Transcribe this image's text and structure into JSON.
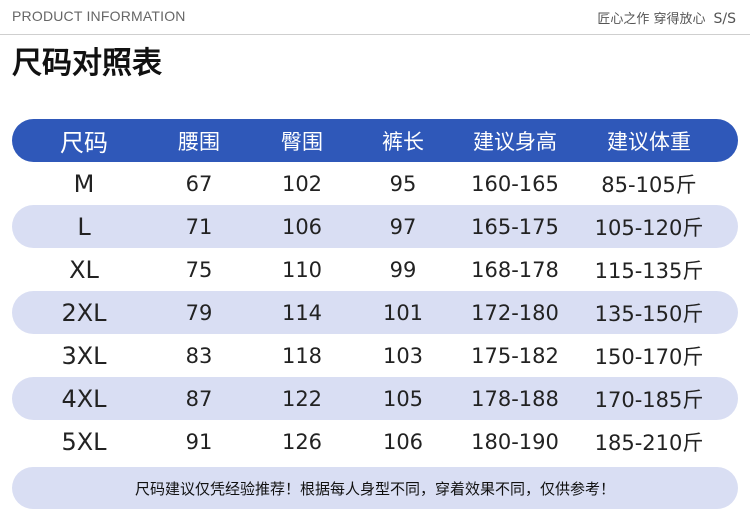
{
  "header": {
    "left_text": "PRODUCT INFORMATION",
    "right_text": "匠心之作 穿得放心",
    "right_logo": "S/S"
  },
  "title": "尺码对照表",
  "table": {
    "columns": [
      "尺码",
      "腰围",
      "臀围",
      "裤长",
      "建议身高",
      "建议体重"
    ],
    "rows": [
      [
        "M",
        "67",
        "102",
        "95",
        "160-165",
        "85-105斤"
      ],
      [
        "L",
        "71",
        "106",
        "97",
        "165-175",
        "105-120斤"
      ],
      [
        "XL",
        "75",
        "110",
        "99",
        "168-178",
        "115-135斤"
      ],
      [
        "2XL",
        "79",
        "114",
        "101",
        "172-180",
        "135-150斤"
      ],
      [
        "3XL",
        "83",
        "118",
        "103",
        "175-182",
        "150-170斤"
      ],
      [
        "4XL",
        "87",
        "122",
        "105",
        "178-188",
        "170-185斤"
      ],
      [
        "5XL",
        "91",
        "126",
        "106",
        "180-190",
        "185-210斤"
      ]
    ]
  },
  "note": "尺码建议仅凭经验推荐！根据每人身型不同，穿着效果不同，仅供参考！",
  "colors": {
    "header_bg": "#2f58b9",
    "stripe_bg": "#d9def3"
  }
}
